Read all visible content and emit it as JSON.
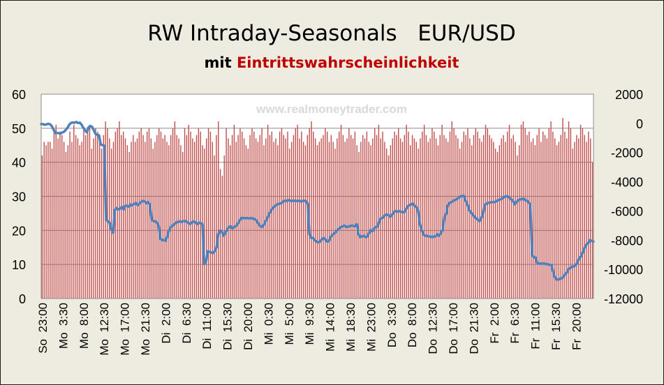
{
  "chart_data": {
    "type": "bar",
    "title": "RW Intraday-Seasonals   EUR/USD",
    "subtitle_prefix": "mit ",
    "subtitle_highlight": "Eintrittswahrscheinlichkeit",
    "watermark": "www.realmoneytrader.com",
    "colors": {
      "bars": "#c0504d",
      "line": "#4f81bd",
      "background": "#eeece1",
      "plot_area": "#ffffff",
      "title": "#000000",
      "subtitle_highlight": "#c00000",
      "watermark": "#d9d9d9"
    },
    "grid": true,
    "legend": "none",
    "y_left": {
      "min": 0,
      "max": 60,
      "ticks": [
        "0",
        "10",
        "20",
        "30",
        "40",
        "50",
        "60"
      ]
    },
    "y_right": {
      "min": -12000,
      "max": 2000,
      "ticks": [
        "-12000",
        "-10000",
        "-8000",
        "-6000",
        "-4000",
        "-2000",
        "0",
        "2000"
      ]
    },
    "x_tick_labels": [
      "So  23:00",
      "Mo  3:30",
      "Mo  8:00",
      "Mo  12:30",
      "Mo  17:00",
      "Mo  21:30",
      "Di  2:00",
      "Di  6:30",
      "Di  11:00",
      "Di  15:30",
      "Di  20:00",
      "Mi  0:30",
      "Mi  5:00",
      "Mi  9:30",
      "Mi  14:00",
      "Mi  18:30",
      "Mi  23:00",
      "Do  3:30",
      "Do  8:00",
      "Do  12:30",
      "Do  17:00",
      "Do  21:30",
      "Fr  2:00",
      "Fr  6:30",
      "Fr  11:00",
      "Fr  15:30",
      "Fr  20:00"
    ],
    "bar_values": [
      42,
      46,
      45,
      46,
      46,
      44,
      49,
      51,
      47,
      49,
      48,
      46,
      43,
      45,
      49,
      46,
      51,
      48,
      47,
      45,
      46,
      50,
      48,
      49,
      51,
      44,
      47,
      50,
      49,
      47,
      44,
      48,
      52,
      50,
      47,
      44,
      46,
      49,
      50,
      52,
      48,
      49,
      47,
      45,
      43,
      46,
      48,
      46,
      47,
      49,
      50,
      48,
      46,
      49,
      50,
      47,
      44,
      46,
      48,
      50,
      49,
      47,
      48,
      46,
      45,
      48,
      50,
      52,
      48,
      47,
      45,
      43,
      50,
      48,
      51,
      49,
      47,
      46,
      48,
      50,
      49,
      45,
      44,
      47,
      50,
      49,
      46,
      42,
      48,
      52,
      38,
      36,
      42,
      50,
      47,
      45,
      48,
      51,
      46,
      48,
      50,
      49,
      47,
      45,
      44,
      48,
      50,
      49,
      47,
      46,
      48,
      50,
      45,
      47,
      51,
      48,
      49,
      46,
      47,
      45,
      49,
      50,
      48,
      47,
      49,
      44,
      46,
      48,
      50,
      51,
      47,
      49,
      46,
      45,
      48,
      50,
      52,
      49,
      47,
      45,
      46,
      47,
      48,
      50,
      49,
      46,
      48,
      46,
      44,
      47,
      49,
      51,
      48,
      46,
      47,
      50,
      48,
      47,
      49,
      45,
      43,
      46,
      48,
      47,
      49,
      46,
      45,
      47,
      50,
      48,
      51,
      47,
      49,
      46,
      44,
      42,
      45,
      47,
      49,
      48,
      50,
      47,
      46,
      48,
      51,
      49,
      45,
      48,
      47,
      46,
      44,
      47,
      49,
      51,
      48,
      46,
      47,
      50,
      49,
      47,
      45,
      48,
      51,
      48,
      47,
      46,
      49,
      52,
      50,
      48,
      47,
      44,
      46,
      49,
      48,
      50,
      47,
      45,
      48,
      50,
      49,
      47,
      46,
      48,
      51,
      50,
      48,
      47,
      46,
      44,
      43,
      45,
      47,
      48,
      46,
      49,
      51,
      47,
      48,
      46,
      42,
      45,
      51,
      52,
      50,
      48,
      49,
      46,
      47,
      45,
      48,
      50,
      46,
      49,
      48,
      47,
      50,
      52,
      49,
      47,
      45,
      46,
      48,
      53,
      49,
      47,
      52,
      50,
      44,
      46,
      48,
      47,
      51,
      50,
      48,
      46,
      49,
      47,
      40
    ],
    "line_values": [
      -50,
      -50,
      -100,
      -70,
      -30,
      -60,
      -180,
      -420,
      -670,
      -650,
      -680,
      -700,
      -620,
      -580,
      -450,
      -300,
      -90,
      30,
      60,
      40,
      100,
      20,
      50,
      -80,
      -300,
      -480,
      -620,
      -280,
      -180,
      -230,
      -480,
      -720,
      -780,
      -820,
      -1450,
      -1500,
      -1530,
      -6600,
      -6700,
      -6800,
      -7250,
      -7500,
      -5950,
      -5800,
      -5900,
      -5830,
      -5720,
      -5900,
      -5650,
      -5640,
      -5720,
      -5550,
      -5610,
      -5520,
      -5460,
      -5610,
      -5500,
      -5380,
      -5300,
      -5340,
      -5470,
      -5400,
      -5570,
      -6600,
      -6700,
      -6700,
      -6800,
      -7000,
      -7900,
      -8000,
      -8000,
      -8050,
      -7710,
      -7300,
      -7100,
      -7000,
      -6900,
      -6800,
      -6750,
      -6720,
      -6750,
      -6700,
      -6680,
      -6750,
      -6820,
      -6900,
      -6780,
      -6720,
      -6780,
      -6900,
      -6800,
      -6850,
      -6900,
      -9650,
      -9480,
      -8770,
      -8800,
      -8850,
      -8880,
      -8750,
      -8500,
      -7600,
      -7350,
      -7400,
      -7700,
      -7500,
      -7300,
      -7100,
      -7050,
      -7200,
      -7100,
      -7050,
      -6900,
      -6700,
      -6500,
      -6480,
      -6500,
      -6490,
      -6500,
      -6520,
      -6480,
      -6540,
      -6570,
      -6700,
      -6900,
      -7050,
      -7100,
      -6950,
      -6700,
      -6500,
      -6200,
      -6000,
      -5800,
      -5700,
      -5600,
      -5530,
      -5500,
      -5470,
      -5350,
      -5300,
      -5320,
      -5260,
      -5300,
      -5310,
      -5300,
      -5310,
      -5320,
      -5300,
      -5350,
      -5320,
      -5300,
      -5340,
      -5500,
      -7600,
      -7850,
      -7850,
      -8000,
      -8100,
      -8150,
      -8100,
      -7950,
      -7850,
      -7950,
      -8100,
      -8080,
      -7800,
      -7650,
      -7550,
      -7450,
      -7300,
      -7200,
      -7100,
      -7050,
      -7000,
      -7100,
      -7080,
      -7050,
      -7000,
      -7020,
      -7060,
      -6900,
      -7600,
      -7800,
      -7750,
      -7700,
      -7800,
      -7750,
      -7500,
      -7300,
      -7400,
      -7200,
      -7100,
      -7050,
      -6600,
      -6500,
      -6450,
      -6300,
      -6250,
      -6270,
      -6400,
      -6300,
      -6100,
      -6000,
      -6050,
      -6000,
      -6050,
      -6080,
      -6100,
      -5900,
      -5700,
      -5600,
      -5550,
      -5500,
      -5650,
      -5750,
      -6000,
      -6900,
      -7300,
      -7600,
      -7700,
      -7700,
      -7750,
      -7760,
      -7800,
      -7750,
      -7740,
      -7600,
      -7700,
      -7500,
      -7300,
      -6400,
      -6200,
      -5600,
      -5450,
      -5400,
      -5300,
      -5250,
      -5200,
      -5100,
      -5000,
      -5000,
      -4950,
      -5300,
      -5500,
      -5900,
      -6100,
      -6200,
      -6400,
      -6500,
      -6600,
      -6700,
      -6500,
      -6200,
      -5600,
      -5500,
      -5450,
      -5420,
      -5400,
      -5400,
      -5380,
      -5300,
      -5250,
      -5200,
      -5150,
      -5050,
      -5000,
      -5000,
      -5100,
      -5200,
      -5300,
      -5550,
      -5400,
      -5300,
      -5200,
      -5200,
      -5150,
      -5250,
      -5300,
      -5400,
      -5600,
      -9000,
      -9200,
      -9200,
      -9600,
      -9600,
      -9620,
      -9600,
      -9610,
      -9640,
      -9650,
      -9700,
      -9700,
      -10150,
      -10550,
      -10700,
      -10700,
      -10650,
      -10600,
      -10500,
      -10300,
      -10200,
      -9950,
      -9900,
      -9800,
      -9800,
      -9700,
      -9500,
      -9200,
      -9100,
      -8800,
      -8500,
      -8300,
      -8200,
      -8000,
      -8050,
      -8100
    ]
  }
}
